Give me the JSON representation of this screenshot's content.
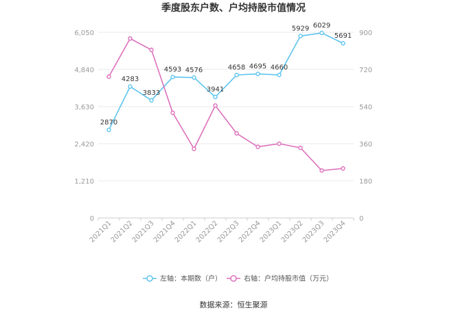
{
  "chart_data": {
    "type": "line",
    "title": "季度股东户数、户均持股市值情况",
    "categories": [
      "2021Q1",
      "2021Q2",
      "2021Q3",
      "2021Q4",
      "2022Q1",
      "2022Q2",
      "2022Q3",
      "2022Q4",
      "2023Q1",
      "2023Q2",
      "2023Q3",
      "2023Q4"
    ],
    "left_axis": {
      "min": 0,
      "max": 6050,
      "ticks": [
        "0",
        "1,210",
        "2,420",
        "3,630",
        "4,840",
        "6,050"
      ]
    },
    "right_axis": {
      "min": 0,
      "max": 900,
      "ticks": [
        "0",
        "180",
        "360",
        "540",
        "720",
        "900"
      ]
    },
    "series": [
      {
        "name": "左轴：本期数（户）",
        "axis": "left",
        "color": "#5bc4ee",
        "values": [
          2870,
          4283,
          3833,
          4593,
          4576,
          3941,
          4658,
          4695,
          4660,
          5929,
          6029,
          5691
        ],
        "labels": [
          "2870",
          "4283",
          "3833",
          "4593",
          "4576",
          "3941",
          "4658",
          "4695",
          "4660",
          "5929",
          "6029",
          "5691"
        ]
      },
      {
        "name": "右轴：户均持股市值（万元）",
        "axis": "right",
        "color": "#dd6fbb",
        "values": [
          685,
          870,
          815,
          510,
          335,
          545,
          410,
          345,
          360,
          340,
          230,
          240
        ]
      }
    ],
    "grid": true,
    "legend_position": "bottom"
  },
  "source_text": "数据来源：恒生聚源"
}
